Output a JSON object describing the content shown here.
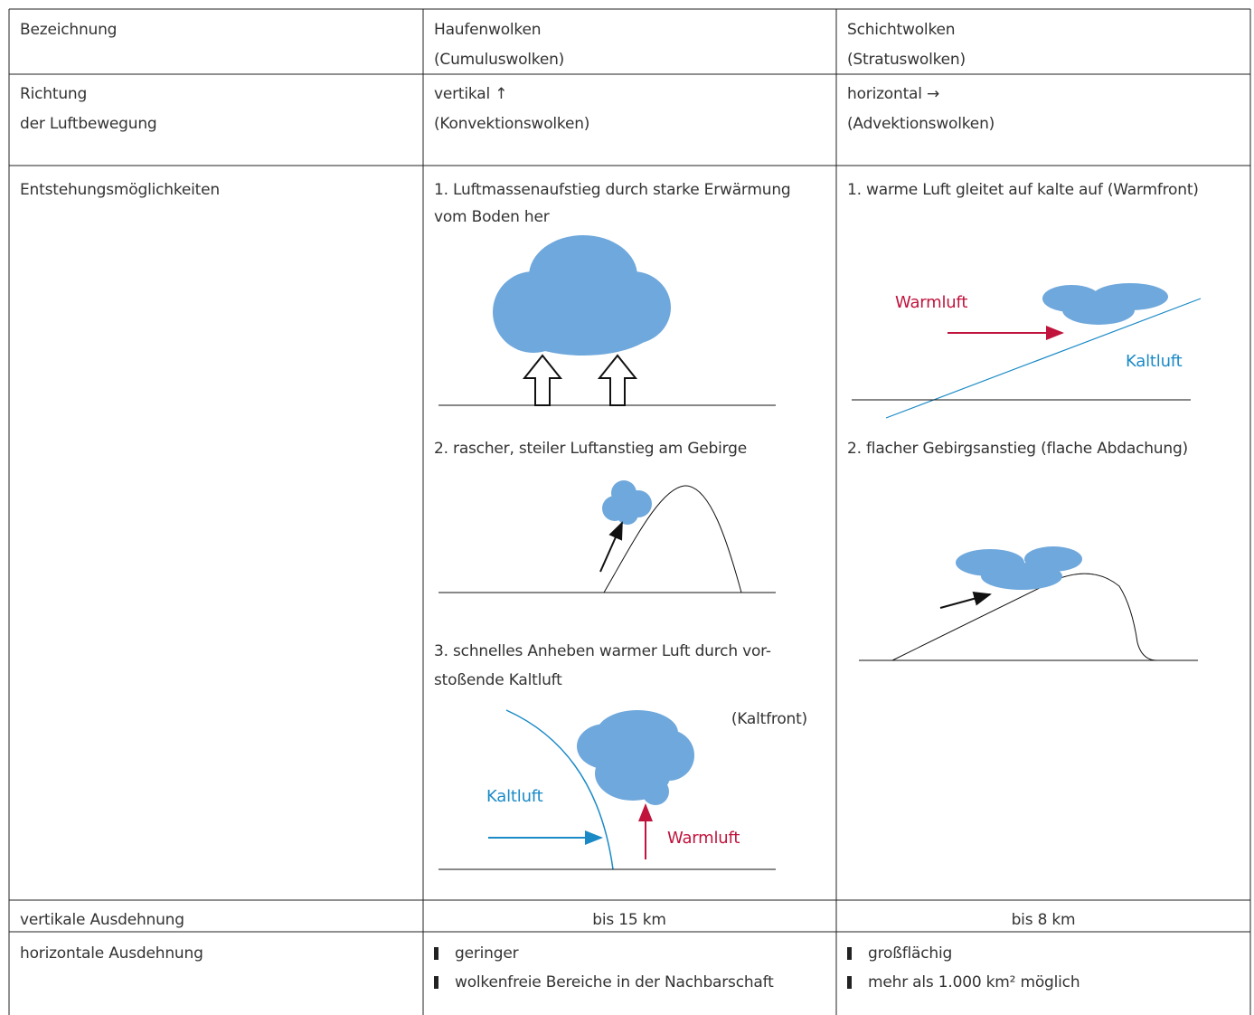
{
  "table": {
    "rows": [
      {
        "label": [
          "Bezeichnung"
        ],
        "cumulus": [
          "Haufenwolken",
          "(Cumuluswolken)"
        ],
        "stratus": [
          "Schichtwolken",
          "(Stratuswolken)"
        ]
      },
      {
        "label": [
          "Richtung",
          "der Luftbewegung"
        ],
        "cumulus": [
          "vertikal ↑",
          "(Konvektionswolken)"
        ],
        "stratus": [
          "horizontal →",
          "(Advektionswolken)"
        ]
      },
      {
        "label": [
          "Entstehungsmöglichkeiten"
        ],
        "cumulus": [
          {
            "text": [
              "1. Luftmassenaufstieg durch starke Erwärmung",
              "vom Boden her"
            ]
          },
          {
            "text": [
              "2. rascher, steiler Luftanstieg am Gebirge"
            ]
          },
          {
            "text": [
              "3. schnelles Anheben warmer Luft durch vor-",
              "stoßende Kaltluft"
            ],
            "labels": [
              "(Kaltfront)",
              "Kaltluft",
              "Warmluft"
            ]
          }
        ],
        "stratus": [
          {
            "text": [
              "1. warme Luft gleitet auf kalte auf (Warmfront)"
            ],
            "labels": [
              "Warmluft",
              "Kaltluft"
            ]
          },
          {
            "text": [
              "2. flacher Gebirgsanstieg (flache Abdachung)"
            ]
          }
        ]
      },
      {
        "label": [
          "vertikale Ausdehnung"
        ],
        "cumulus": [
          "bis 15 km"
        ],
        "stratus": [
          "bis 8 km"
        ]
      },
      {
        "label": [
          "horizontale Ausdehnung"
        ],
        "cumulus": [
          "geringer",
          "wolkenfreie Bereiche in der Nachbarschaft"
        ],
        "stratus": [
          "großflächig",
          "mehr als 1.000 km² möglich"
        ]
      }
    ]
  }
}
